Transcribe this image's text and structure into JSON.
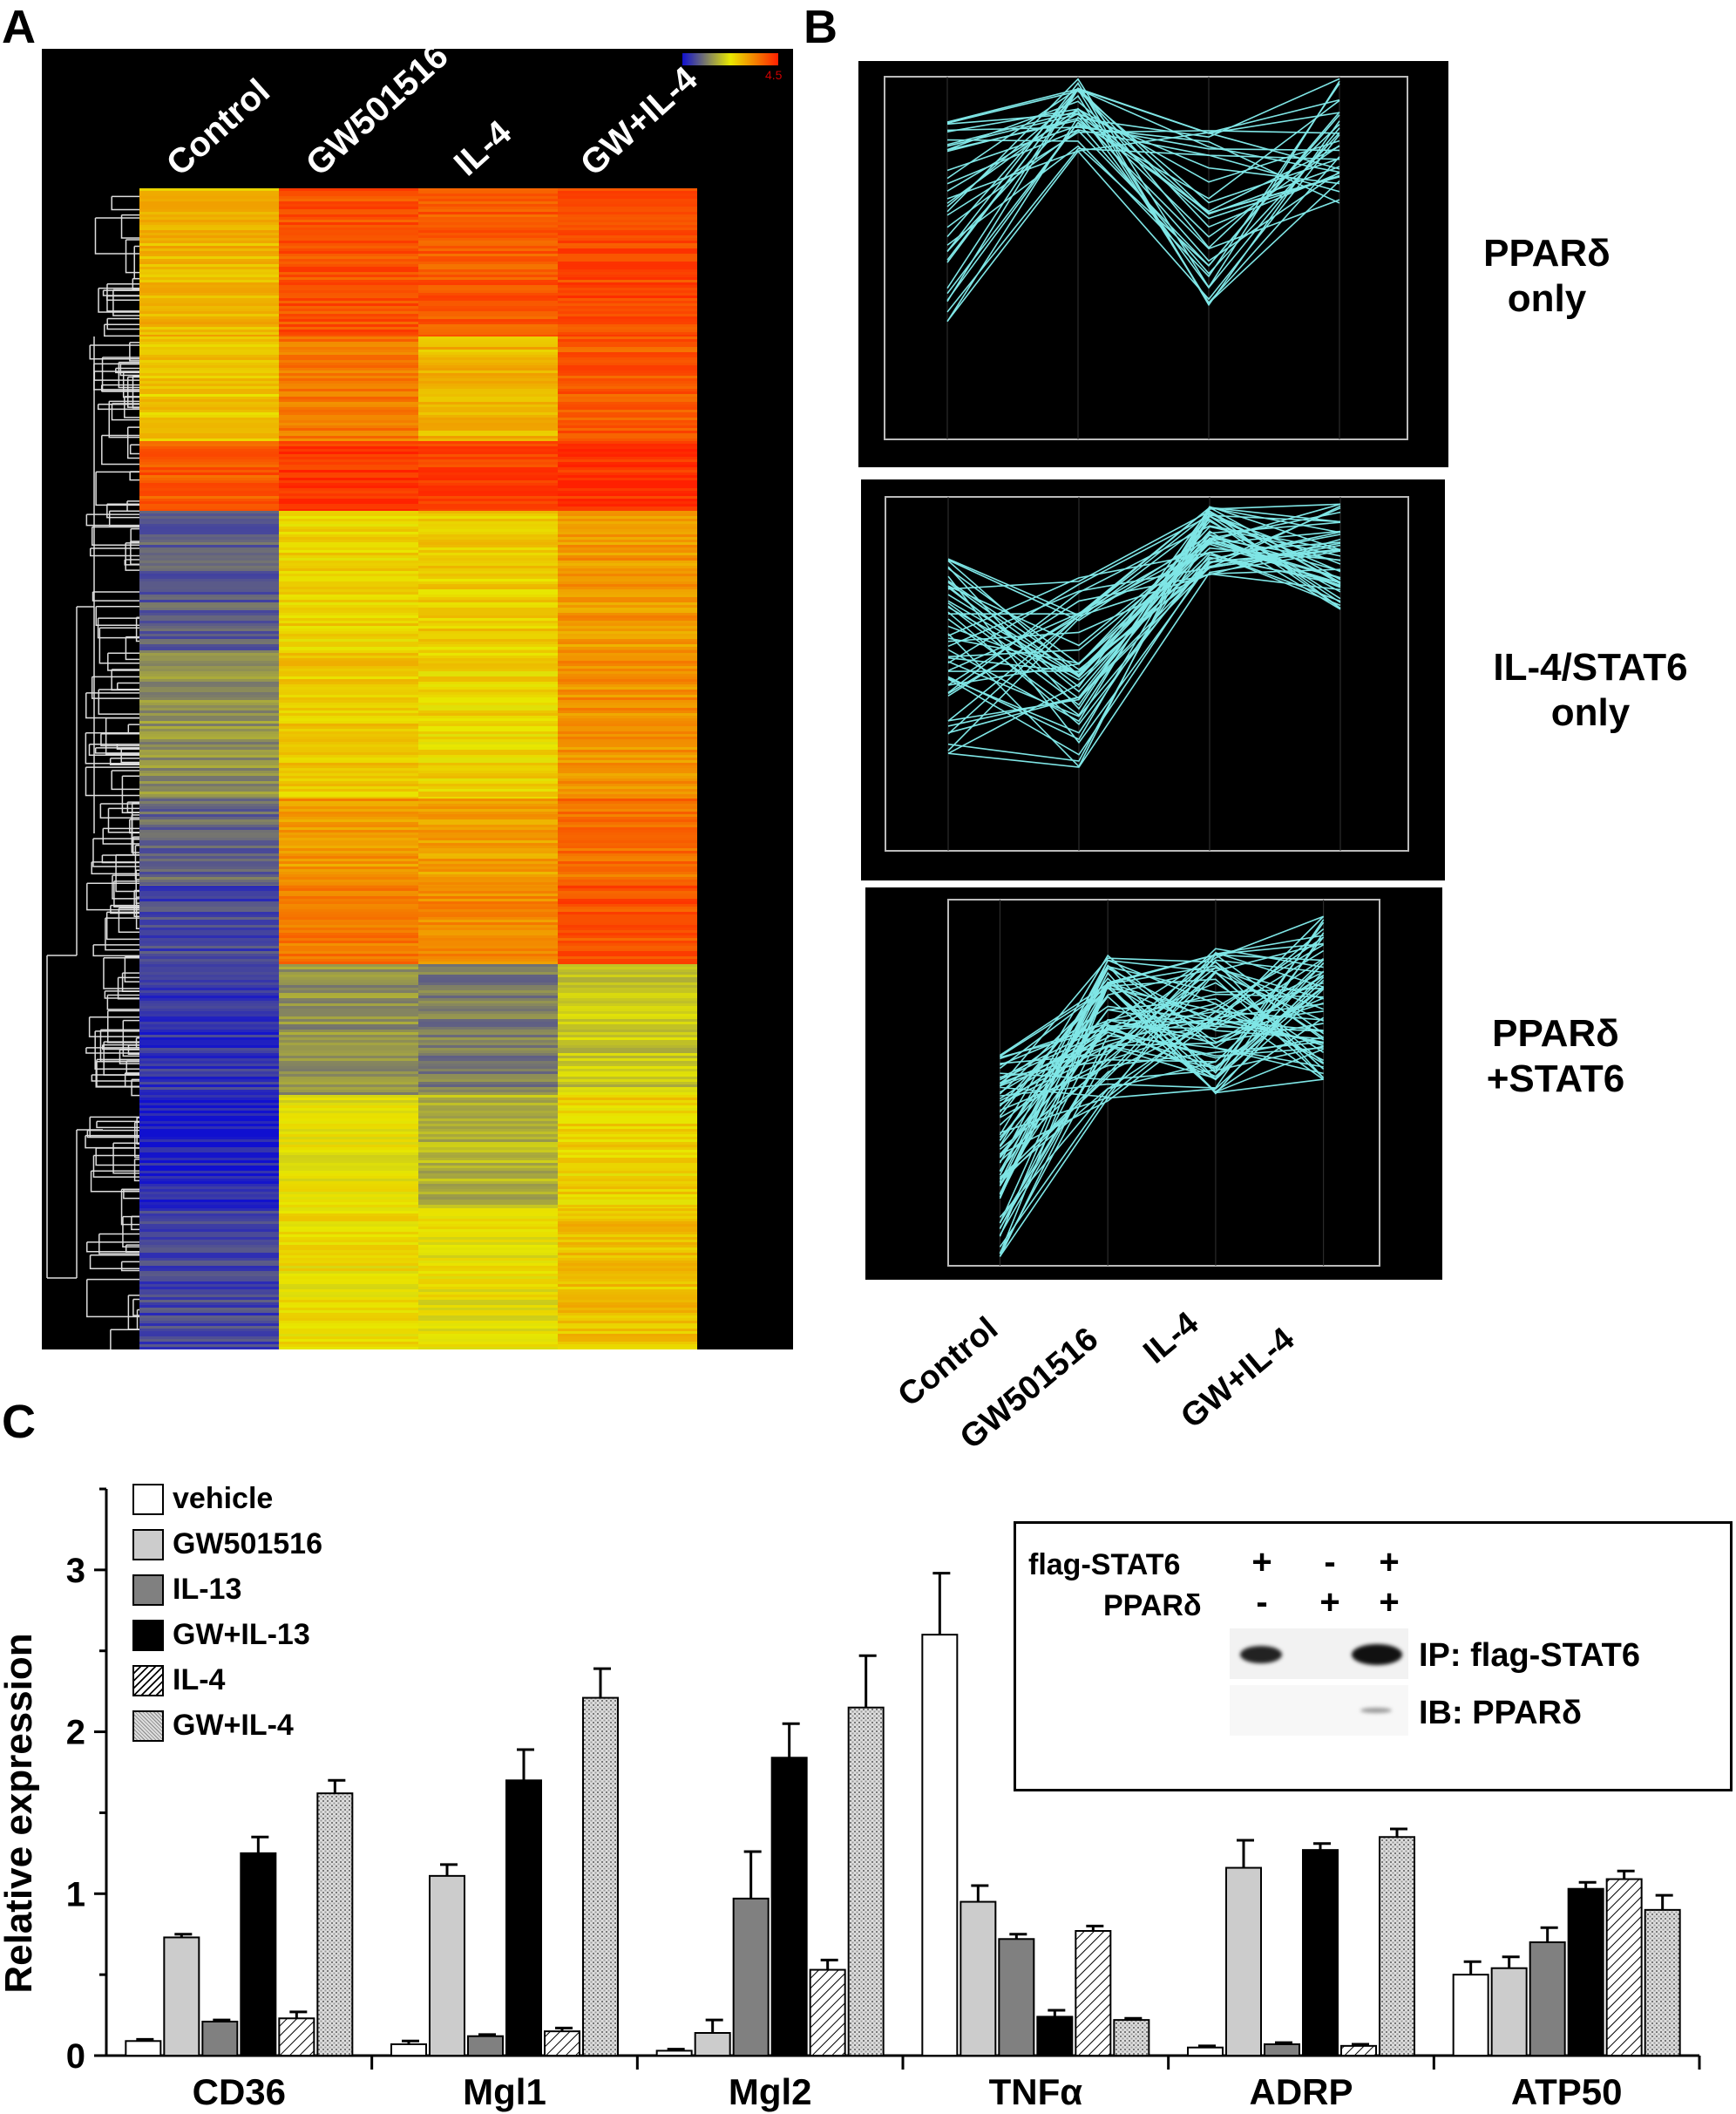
{
  "panels": {
    "a": "A",
    "b": "B",
    "c": "C"
  },
  "heatmap": {
    "columns": [
      "Control",
      "GW501516",
      "IL-4",
      "GW+IL-4"
    ],
    "scale_max_label": "4.5",
    "colors": {
      "low": "#1010d0",
      "mid": "#e8e800",
      "high": "#ff2000"
    }
  },
  "clusters": {
    "labels": [
      {
        "line1": "PPARδ",
        "line2": "only"
      },
      {
        "line1": "IL-4/STAT6",
        "line2": "only"
      },
      {
        "line1": "PPARδ",
        "line2": "+STAT6"
      }
    ],
    "x_labels": [
      "Control",
      "GW501516",
      "IL-4",
      "GW+IL-4"
    ],
    "line_color": "#7fe6e6"
  },
  "chart_data": {
    "type": "bar",
    "ylabel": "Relative expression",
    "ylim": [
      0,
      3.5
    ],
    "yticks": [
      0,
      1,
      2,
      3
    ],
    "categories": [
      "CD36",
      "Mgl1",
      "Mgl2",
      "TNFα",
      "ADRP",
      "ATP50"
    ],
    "series": [
      {
        "name": "vehicle",
        "values": [
          0.09,
          0.07,
          0.03,
          2.6,
          0.05,
          0.5
        ],
        "errors": [
          0.01,
          0.02,
          0.01,
          0.38,
          0.01,
          0.08
        ]
      },
      {
        "name": "GW501516",
        "values": [
          0.73,
          1.11,
          0.14,
          0.95,
          1.16,
          0.54
        ],
        "errors": [
          0.02,
          0.07,
          0.08,
          0.1,
          0.17,
          0.07
        ]
      },
      {
        "name": "IL-13",
        "values": [
          0.21,
          0.12,
          0.97,
          0.72,
          0.07,
          0.7
        ],
        "errors": [
          0.01,
          0.01,
          0.29,
          0.03,
          0.01,
          0.09
        ]
      },
      {
        "name": "GW+IL-13",
        "values": [
          1.25,
          1.7,
          1.84,
          0.24,
          1.27,
          1.03
        ],
        "errors": [
          0.1,
          0.19,
          0.21,
          0.04,
          0.04,
          0.04
        ]
      },
      {
        "name": "IL-4",
        "values": [
          0.23,
          0.15,
          0.53,
          0.77,
          0.06,
          1.09
        ],
        "errors": [
          0.04,
          0.02,
          0.06,
          0.03,
          0.01,
          0.05
        ]
      },
      {
        "name": "GW+IL-4",
        "values": [
          1.62,
          2.21,
          2.15,
          0.22,
          1.35,
          0.9
        ],
        "errors": [
          0.08,
          0.18,
          0.32,
          0.01,
          0.05,
          0.09
        ]
      }
    ]
  },
  "inset": {
    "row1_label": "flag-STAT6",
    "row1_signs": [
      "+",
      "-",
      "+"
    ],
    "row2_label": "PPARδ",
    "row2_signs": [
      "-",
      "+",
      "+"
    ],
    "blot1_label": "IP: flag-STAT6",
    "blot2_label": "IB: PPARδ"
  }
}
